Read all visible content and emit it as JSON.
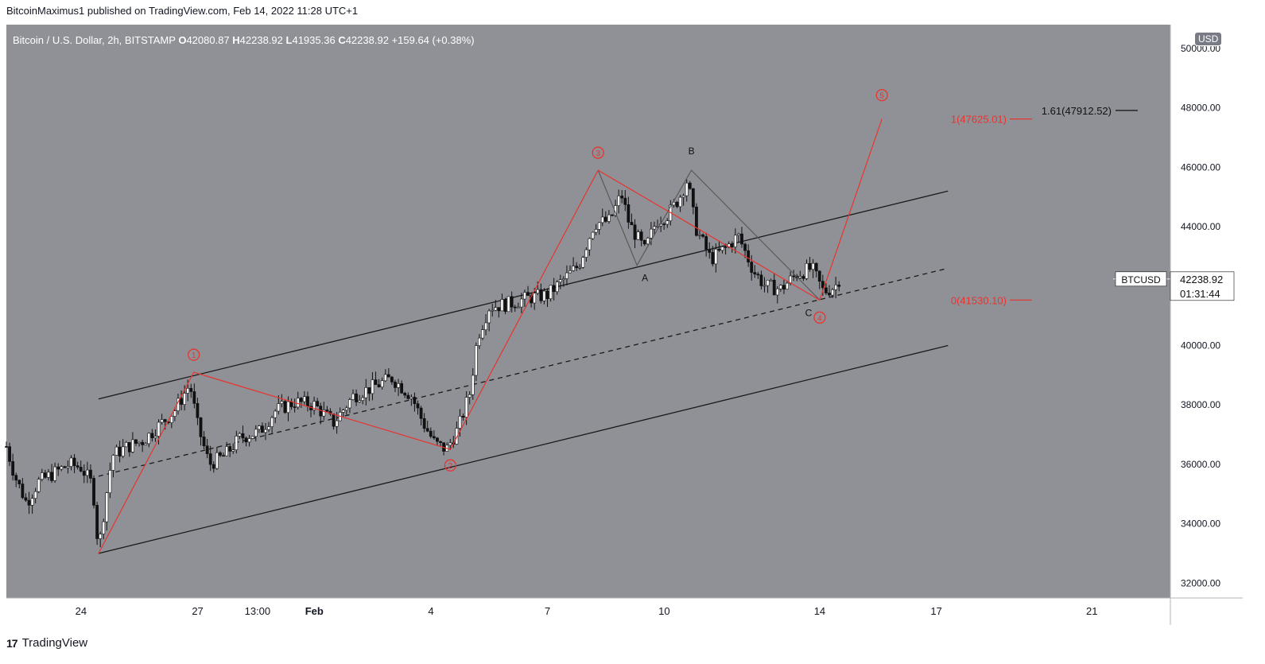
{
  "header": {
    "published_by": "BitcoinMaximus1 published on TradingView.com, Feb 14, 2022 11:28 UTC+1"
  },
  "legend": {
    "symbol": "Bitcoin / U.S. Dollar, 2h, BITSTAMP",
    "open_label": "O",
    "open": "42080.87",
    "high_label": "H",
    "high": "42238.92",
    "low_label": "L",
    "low": "41935.36",
    "close_label": "C",
    "close": "42238.92",
    "change": "+159.64 (+0.38%)"
  },
  "currency_button": "USD",
  "price_tag": {
    "ticker": "BTCUSD",
    "price": "42238.92",
    "countdown": "01:31:44"
  },
  "footer": {
    "brand": "TradingView"
  },
  "colors": {
    "plot_bg": "#909197",
    "wave_red": "#e8342e",
    "channel": "#1a1a1a",
    "correction": "#5a5a5a",
    "scale_bg": "#ffffff"
  },
  "chart_data": {
    "type": "candlestick",
    "title": "Bitcoin / U.S. Dollar, 2h, BITSTAMP",
    "y_axis": {
      "ticks": [
        "50000.00",
        "48000.00",
        "46000.00",
        "44000.00",
        "42000.00",
        "40000.00",
        "38000.00",
        "36000.00",
        "34000.00",
        "32000.00"
      ],
      "tick_values": [
        50000,
        48000,
        46000,
        44000,
        42000,
        40000,
        38000,
        36000,
        34000,
        32000
      ],
      "range": [
        31500,
        50800
      ]
    },
    "x_axis": {
      "ticks": [
        "24",
        "27",
        "13:00",
        "Feb",
        "4",
        "7",
        "10",
        "14",
        "17",
        "21"
      ],
      "tick_days": [
        0,
        3,
        4.54,
        6,
        9,
        12,
        15,
        19,
        22,
        26
      ],
      "range_days": [
        -1.92,
        28.02
      ]
    },
    "price_path": [
      [
        -1.92,
        36600
      ],
      [
        -1.7,
        35600
      ],
      [
        -1.4,
        34700
      ],
      [
        -1.1,
        35400
      ],
      [
        -0.7,
        35700
      ],
      [
        -0.3,
        36000
      ],
      [
        0,
        35900
      ],
      [
        0.3,
        35300
      ],
      [
        0.45,
        33100
      ],
      [
        0.6,
        34500
      ],
      [
        0.8,
        36300
      ],
      [
        1.2,
        36600
      ],
      [
        1.6,
        36800
      ],
      [
        2.0,
        37300
      ],
      [
        2.4,
        37800
      ],
      [
        2.8,
        38700
      ],
      [
        3.0,
        37300
      ],
      [
        3.3,
        36000
      ],
      [
        3.7,
        36300
      ],
      [
        4.1,
        36900
      ],
      [
        4.6,
        37100
      ],
      [
        5.0,
        37800
      ],
      [
        5.5,
        38100
      ],
      [
        6.0,
        38000
      ],
      [
        6.5,
        37400
      ],
      [
        7.0,
        38300
      ],
      [
        7.5,
        38600
      ],
      [
        8.0,
        38900
      ],
      [
        8.5,
        38300
      ],
      [
        8.8,
        37400
      ],
      [
        9.1,
        36700
      ],
      [
        9.4,
        36500
      ],
      [
        9.7,
        37200
      ],
      [
        10.0,
        38400
      ],
      [
        10.2,
        40300
      ],
      [
        10.5,
        41300
      ],
      [
        11.0,
        41400
      ],
      [
        11.5,
        41600
      ],
      [
        12.0,
        41700
      ],
      [
        12.4,
        42200
      ],
      [
        12.8,
        42700
      ],
      [
        13.2,
        44100
      ],
      [
        13.6,
        44200
      ],
      [
        13.9,
        45100
      ],
      [
        14.1,
        44100
      ],
      [
        14.5,
        43200
      ],
      [
        14.8,
        44200
      ],
      [
        15.1,
        44400
      ],
      [
        15.4,
        45000
      ],
      [
        15.6,
        45600
      ],
      [
        15.8,
        44000
      ],
      [
        16.2,
        42900
      ],
      [
        16.6,
        43300
      ],
      [
        16.9,
        43700
      ],
      [
        17.3,
        42500
      ],
      [
        17.6,
        42000
      ],
      [
        18.0,
        41900
      ],
      [
        18.4,
        42400
      ],
      [
        18.8,
        42600
      ],
      [
        19.1,
        41800
      ],
      [
        19.4,
        42000
      ],
      [
        19.5,
        42240
      ]
    ],
    "waves": [
      {
        "label": "1",
        "points": [
          [
            0.45,
            33000
          ],
          [
            2.9,
            39100
          ],
          [
            9.5,
            36500
          ],
          [
            13.3,
            45900
          ],
          [
            19.0,
            41530
          ],
          [
            20.6,
            47625
          ]
        ]
      },
      {
        "label": "2",
        "day": 9.5,
        "price": 36500
      },
      {
        "label": "3",
        "day": 13.3,
        "price": 45900
      },
      {
        "label": "4",
        "day": 19.0,
        "price": 41530
      },
      {
        "label": "5",
        "day": 20.6,
        "price": 47625
      }
    ],
    "wave_labels": [
      "1",
      "2",
      "3",
      "4",
      "5"
    ],
    "correction": {
      "labels": [
        "A",
        "B",
        "C"
      ],
      "points": [
        [
          13.3,
          45900
        ],
        [
          14.3,
          42700
        ],
        [
          15.7,
          45900
        ],
        [
          19.0,
          41530
        ]
      ]
    },
    "channel": {
      "upper": [
        [
          0.45,
          38200
        ],
        [
          22.3,
          45200
        ]
      ],
      "middle": [
        [
          0.45,
          35600
        ],
        [
          22.3,
          42600
        ]
      ],
      "lower": [
        [
          0.45,
          33000
        ],
        [
          22.3,
          40000
        ]
      ]
    },
    "fib_levels": [
      {
        "label": "0(41530.10)",
        "value": 41530.1,
        "color": "red"
      },
      {
        "label": "1(47625.01)",
        "value": 47625.01,
        "color": "red"
      },
      {
        "label": "1.61(47912.52)",
        "value": 47912.52,
        "color": "black"
      }
    ],
    "last_price": 42238.92
  }
}
